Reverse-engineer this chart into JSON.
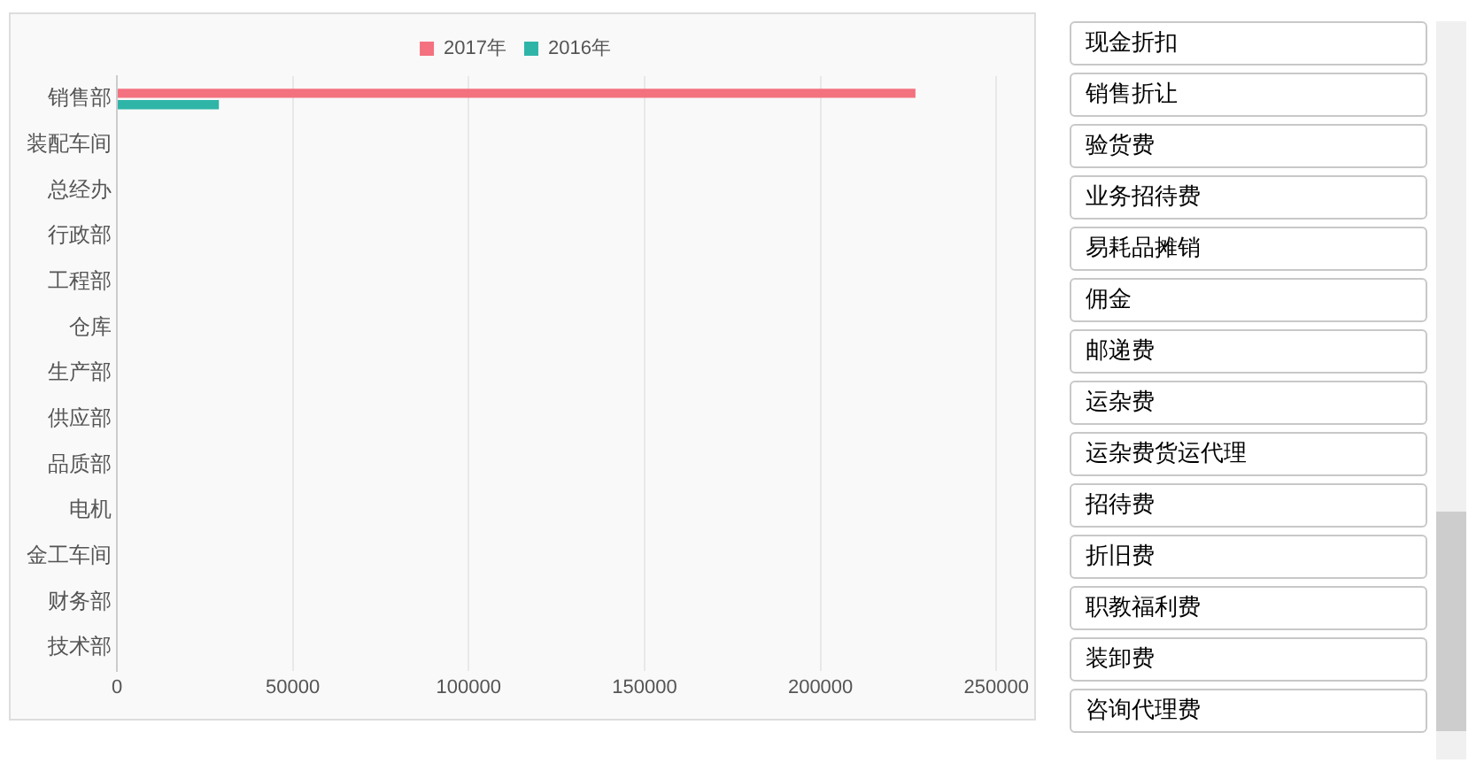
{
  "chart_data": [
    {
      "type": "bar",
      "orientation": "horizontal",
      "categories": [
        "销售部",
        "装配车间",
        "总经办",
        "行政部",
        "工程部",
        "仓库",
        "生产部",
        "供应部",
        "品质部",
        "电机",
        "金工车间",
        "财务部",
        "技术部"
      ],
      "series": [
        {
          "name": "2017年",
          "color": "#f4717f",
          "values": [
            227000,
            0,
            0,
            0,
            0,
            0,
            0,
            0,
            0,
            0,
            0,
            0,
            0
          ]
        },
        {
          "name": "2016年",
          "color": "#2fb5a8",
          "values": [
            29000,
            0,
            0,
            0,
            0,
            0,
            0,
            0,
            0,
            0,
            0,
            0,
            0
          ]
        }
      ],
      "xlim": [
        0,
        250000
      ],
      "xticks": [
        0,
        50000,
        100000,
        150000,
        200000,
        250000
      ],
      "grid": "x",
      "legend": "top"
    },
    {
      "type": "other",
      "annotations": [
        "现金折扣",
        "销售折让",
        "验货费",
        "业务招待费",
        "易耗品摊销",
        "佣金",
        "邮递费",
        "运杂费",
        "运杂费货运代理",
        "招待费",
        "折旧费",
        "职教福利费",
        "装卸费",
        "咨询代理费"
      ]
    }
  ]
}
